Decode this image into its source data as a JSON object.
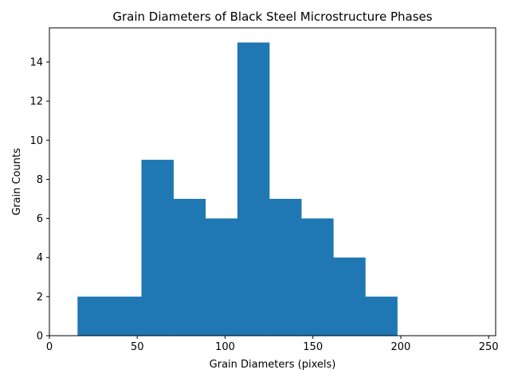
{
  "chart_data": {
    "type": "bar",
    "subtype": "histogram",
    "title": "Grain Diameters of Black Steel Microstructure Phases",
    "xlabel": "Grain Diameters (pixels)",
    "ylabel": "Grain Counts",
    "xlim": [
      0,
      254
    ],
    "ylim": [
      0,
      15.75
    ],
    "xticks": [
      0,
      50,
      100,
      150,
      200,
      250
    ],
    "yticks": [
      0,
      2,
      4,
      6,
      8,
      10,
      12,
      14
    ],
    "bin_edges": [
      16,
      34.2,
      52.4,
      70.6,
      88.8,
      107,
      125.2,
      143.4,
      161.6,
      179.8,
      198
    ],
    "values": [
      2,
      2,
      9,
      7,
      6,
      15,
      7,
      6,
      4,
      2
    ],
    "bar_color": "#1f77b4",
    "grid": false
  }
}
